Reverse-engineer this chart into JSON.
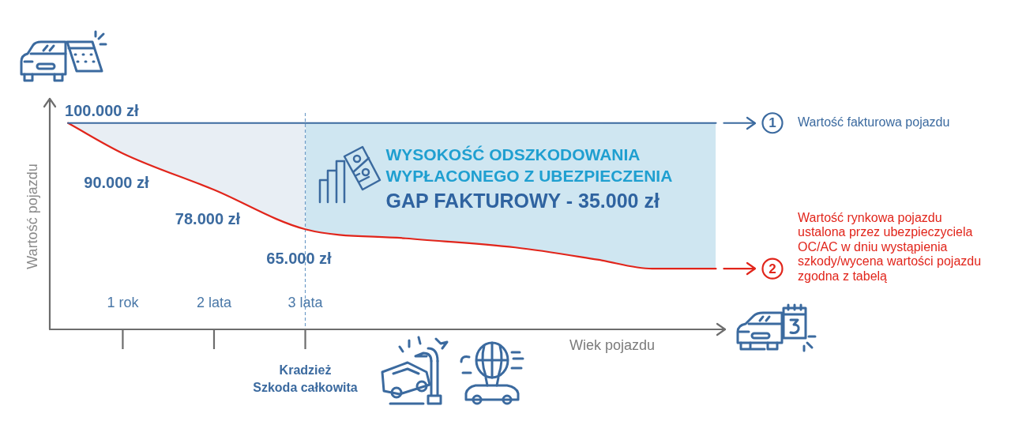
{
  "chart_data": {
    "type": "line",
    "xlabel": "Wiek pojazdu",
    "ylabel": "Wartość pojazdu",
    "xlim": [
      0.2,
      7.6
    ],
    "xticks": [
      {
        "value": 1,
        "label": "1 rok"
      },
      {
        "value": 2,
        "label": "2 lata"
      },
      {
        "value": 3,
        "label": "3 lata"
      }
    ],
    "ylim": [
      32000,
      108000
    ],
    "tick_labels": "x",
    "series": [
      {
        "name": "Wartość fakturowa pojazdu",
        "color": "#3b6a9f",
        "x": [
          0.4,
          7.5
        ],
        "values": [
          100000,
          100000
        ],
        "value_labels": [
          "100.000 zł",
          null
        ]
      },
      {
        "name": "Wartość rynkowa pojazdu\nustalona przez ubezpieczyciela\nOC/AC w dniu wystąpienia\nszkody/wycena wartości pojazdu\nzgodna z tabelą",
        "color": "#e1251b",
        "x": [
          0.4,
          1,
          2,
          3,
          4.1,
          5.3,
          6.2,
          6.8,
          7.5
        ],
        "values": [
          100000,
          90000,
          78000,
          65000,
          62000,
          59000,
          55000,
          52000,
          52000
        ],
        "value_labels": [
          null,
          "90.000 zł",
          "78.000 zł",
          "65.000 zł",
          null,
          null,
          null,
          null,
          null
        ]
      }
    ],
    "bands": [
      {
        "axis": "x",
        "from": 0.4,
        "to": 3,
        "color": "#e8eef4"
      },
      {
        "axis": "x",
        "from": 3,
        "to": 7.5,
        "label": "WYSOKOŚĆ ODSZKODOWANIA\nWYPŁACONEGO Z UBEZPIECZENIA",
        "color": "#cfe6f1"
      }
    ],
    "ref_lines": [
      {
        "axis": "x",
        "value": 3,
        "label": "Kradzież\nSzkoda całkowita",
        "line_style": "dashed",
        "color": "#6f9dc8"
      }
    ],
    "annotations": [
      "GAP FAKTUROWY - 35.000 zł",
      "1",
      "2"
    ]
  }
}
